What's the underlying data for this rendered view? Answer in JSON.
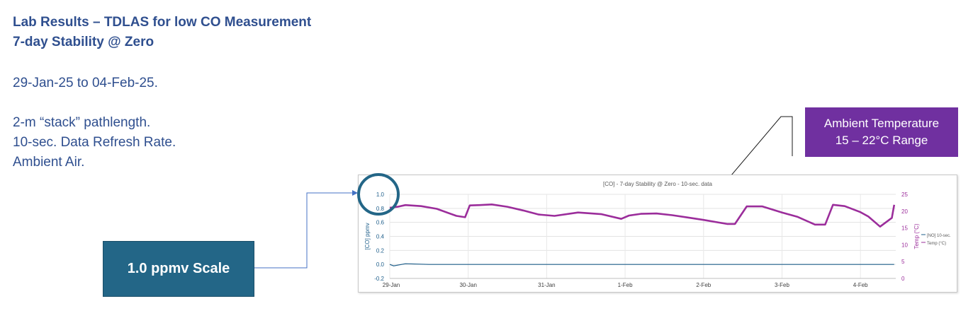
{
  "slide": {
    "title_line1": "Lab Results – TDLAS for low CO Measurement",
    "title_line2": "7-day Stability @ Zero",
    "date_range": "29-Jan-25 to 04-Feb-25.",
    "notes": [
      "2-m “stack” pathlength.",
      "10-sec. Data Refresh Rate.",
      "Ambient Air."
    ],
    "callout_scale": "1.0 ppmv Scale",
    "callout_temp_line1": "Ambient Temperature",
    "callout_temp_line2": "15 – 22°C Range"
  },
  "colors": {
    "title_text": "#2f4f8f",
    "scale_box": "#236687",
    "temp_box": "#7030a0",
    "co_series": "#1f5f8b",
    "temp_series": "#9b2d9b",
    "circle": "#236687",
    "connector": "#4472c4"
  },
  "chart_data": {
    "type": "line",
    "title": "[CO] - 7-day Stability @ Zero - 10-sec. data",
    "ylabel": "[CO] ppmv",
    "y2label": "Temp (°C)",
    "ylim": [
      -0.2,
      1.0
    ],
    "y2lim": [
      0,
      25
    ],
    "grid": true,
    "legend_position": "right",
    "legend": [
      "[NO] 10-sec.",
      "Temp (°C)"
    ],
    "x_ticks": [
      "29-Jan",
      "30-Jan",
      "31-Jan",
      "1-Feb",
      "2-Feb",
      "3-Feb",
      "4-Feb"
    ],
    "y_ticks": [
      -0.2,
      0.0,
      0.2,
      0.4,
      0.6,
      0.8,
      1.0
    ],
    "y2_ticks": [
      0,
      5,
      10,
      15,
      20,
      25
    ],
    "series": [
      {
        "name": "Temp (°C)",
        "axis": "right",
        "x": [
          0.0,
          0.1,
          0.2,
          0.4,
          0.6,
          0.85,
          0.96,
          1.02,
          1.15,
          1.3,
          1.5,
          1.7,
          1.9,
          2.1,
          2.4,
          2.7,
          2.95,
          3.05,
          3.2,
          3.4,
          3.6,
          3.8,
          4.0,
          4.2,
          4.3,
          4.4,
          4.55,
          4.75,
          5.0,
          5.2,
          5.42,
          5.55,
          5.65,
          5.8,
          6.0,
          6.1,
          6.25,
          6.4,
          6.43
        ],
        "values": [
          21.0,
          21.3,
          21.8,
          21.5,
          20.7,
          18.6,
          18.2,
          21.7,
          21.8,
          22.0,
          21.3,
          20.2,
          19.0,
          18.6,
          19.6,
          19.1,
          17.7,
          18.7,
          19.2,
          19.3,
          18.8,
          18.1,
          17.4,
          16.6,
          16.2,
          16.2,
          21.4,
          21.4,
          19.6,
          18.3,
          16.0,
          16.0,
          21.9,
          21.5,
          19.7,
          18.4,
          15.4,
          18.0,
          21.9
        ]
      },
      {
        "name": "[NO] 10-sec.",
        "axis": "left",
        "x": [
          0.0,
          0.05,
          0.2,
          0.5,
          1.0,
          1.5,
          2.0,
          2.5,
          3.0,
          3.5,
          4.0,
          4.5,
          5.0,
          5.5,
          6.0,
          6.43
        ],
        "values": [
          0.0,
          -0.02,
          0.01,
          0.0,
          0.0,
          0.0,
          0.0,
          0.0,
          0.0,
          0.0,
          0.0,
          0.0,
          0.0,
          0.0,
          0.0,
          0.0
        ]
      }
    ]
  }
}
